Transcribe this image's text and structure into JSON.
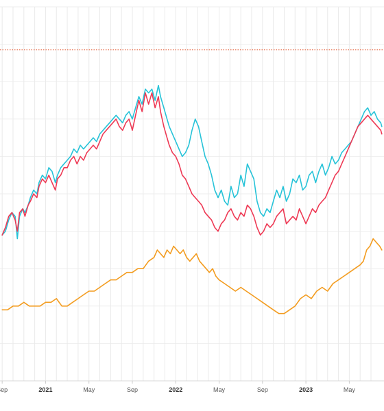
{
  "chart_data": {
    "type": "line",
    "title": "",
    "xlabel": "",
    "ylabel": "",
    "x_ticks": [
      {
        "label": "Sep",
        "t": 0.0,
        "bold": false
      },
      {
        "label": "2021",
        "t": 4.0,
        "bold": true
      },
      {
        "label": "May",
        "t": 8.0,
        "bold": false
      },
      {
        "label": "Sep",
        "t": 12.0,
        "bold": false
      },
      {
        "label": "2022",
        "t": 16.0,
        "bold": true
      },
      {
        "label": "May",
        "t": 20.0,
        "bold": false
      },
      {
        "label": "Sep",
        "t": 24.0,
        "bold": false
      },
      {
        "label": "2023",
        "t": 28.0,
        "bold": true
      },
      {
        "label": "May",
        "t": 32.0,
        "bold": false
      }
    ],
    "minor_ticks": [
      1,
      2,
      3,
      5,
      6,
      7,
      9,
      10,
      11,
      13,
      14,
      15,
      17,
      18,
      19,
      21,
      22,
      23,
      25,
      26,
      27,
      29,
      30,
      31,
      33,
      34
    ],
    "xlim": [
      -0.2,
      35.2
    ],
    "ylim": [
      0,
      100
    ],
    "reference_line": {
      "y": 88.5,
      "color": "#e4572e"
    },
    "grid": true,
    "series": [
      {
        "color": "#27c3d8",
        "x": [
          0,
          0.3,
          0.6,
          0.9,
          1.2,
          1.4,
          1.6,
          1.9,
          2.1,
          2.4,
          2.6,
          2.9,
          3.2,
          3.4,
          3.7,
          4.0,
          4.3,
          4.6,
          4.9,
          5.1,
          5.4,
          5.7,
          6.0,
          6.3,
          6.6,
          6.9,
          7.2,
          7.5,
          7.8,
          8.1,
          8.4,
          8.7,
          9.0,
          9.3,
          9.6,
          9.9,
          10.2,
          10.5,
          10.8,
          11.1,
          11.4,
          11.7,
          12.0,
          12.3,
          12.6,
          12.9,
          13.2,
          13.5,
          13.8,
          14.1,
          14.4,
          14.6,
          14.9,
          15.2,
          15.4,
          15.7,
          16.0,
          16.3,
          16.6,
          16.9,
          17.2,
          17.5,
          17.8,
          18.1,
          18.4,
          18.7,
          19.0,
          19.3,
          19.6,
          19.9,
          20.2,
          20.5,
          20.8,
          21.1,
          21.4,
          21.7,
          22.0,
          22.3,
          22.6,
          22.9,
          23.2,
          23.5,
          23.8,
          24.1,
          24.4,
          24.7,
          25.0,
          25.3,
          25.6,
          25.9,
          26.2,
          26.5,
          26.8,
          27.1,
          27.4,
          27.7,
          28.0,
          28.3,
          28.6,
          28.9,
          29.2,
          29.5,
          29.8,
          30.1,
          30.4,
          30.7,
          31.0,
          31.3,
          31.6,
          31.9,
          32.2,
          32.5,
          32.8,
          33.1,
          33.4,
          33.7,
          34.0,
          34.3,
          34.6,
          34.9,
          35.0
        ],
        "values": [
          39,
          40,
          43,
          45,
          44,
          38,
          44,
          46,
          45,
          47,
          49,
          51,
          50,
          53,
          55,
          54,
          57,
          56,
          53,
          55,
          57,
          58,
          59,
          60,
          62,
          61,
          63,
          62,
          63,
          64,
          65,
          64,
          66,
          67,
          68,
          69,
          70,
          71,
          70,
          69,
          71,
          72,
          70,
          73,
          76,
          74,
          78,
          77,
          78,
          75,
          79,
          76,
          73,
          70,
          68,
          66,
          64,
          62,
          60,
          61,
          63,
          67,
          70,
          68,
          64,
          60,
          58,
          55,
          51,
          49,
          51,
          48,
          47,
          52,
          49,
          50,
          55,
          52,
          58,
          56,
          54,
          48,
          45,
          44,
          46,
          45,
          48,
          51,
          49,
          52,
          48,
          50,
          54,
          53,
          55,
          51,
          52,
          55,
          56,
          53,
          56,
          58,
          55,
          57,
          60,
          58,
          59,
          61,
          62,
          63,
          64,
          66,
          68,
          70,
          72,
          73,
          71,
          72,
          70,
          69,
          68
        ]
      },
      {
        "color": "#ee3a55",
        "x": [
          0,
          0.3,
          0.6,
          0.9,
          1.2,
          1.4,
          1.6,
          1.9,
          2.1,
          2.4,
          2.6,
          2.9,
          3.2,
          3.4,
          3.7,
          4.0,
          4.3,
          4.6,
          4.9,
          5.1,
          5.4,
          5.7,
          6.0,
          6.3,
          6.6,
          6.9,
          7.2,
          7.5,
          7.8,
          8.1,
          8.4,
          8.7,
          9.0,
          9.3,
          9.6,
          9.9,
          10.2,
          10.5,
          10.8,
          11.1,
          11.4,
          11.7,
          12.0,
          12.3,
          12.6,
          12.9,
          13.2,
          13.5,
          13.8,
          14.1,
          14.4,
          14.6,
          14.9,
          15.2,
          15.4,
          15.7,
          16.0,
          16.3,
          16.6,
          16.9,
          17.2,
          17.5,
          17.8,
          18.1,
          18.4,
          18.7,
          19.0,
          19.3,
          19.6,
          19.9,
          20.2,
          20.5,
          20.8,
          21.1,
          21.4,
          21.7,
          22.0,
          22.3,
          22.6,
          22.9,
          23.2,
          23.5,
          23.8,
          24.1,
          24.4,
          24.7,
          25.0,
          25.3,
          25.6,
          25.9,
          26.2,
          26.5,
          26.8,
          27.1,
          27.4,
          27.7,
          28.0,
          28.3,
          28.6,
          28.9,
          29.2,
          29.5,
          29.8,
          30.1,
          30.4,
          30.7,
          31.0,
          31.3,
          31.6,
          31.9,
          32.2,
          32.5,
          32.8,
          33.1,
          33.4,
          33.7,
          34.0,
          34.3,
          34.6,
          34.9,
          35.0
        ],
        "values": [
          39,
          41,
          44,
          45,
          43,
          40,
          45,
          46,
          44,
          47,
          48,
          50,
          49,
          52,
          54,
          53,
          55,
          53,
          51,
          54,
          55,
          57,
          57,
          59,
          60,
          58,
          60,
          59,
          61,
          62,
          63,
          62,
          64,
          66,
          67,
          68,
          69,
          70,
          68,
          67,
          69,
          70,
          67,
          71,
          75,
          72,
          77,
          74,
          77,
          73,
          76,
          72,
          68,
          65,
          63,
          61,
          60,
          58,
          55,
          54,
          52,
          50,
          49,
          48,
          47,
          45,
          44,
          43,
          41,
          40,
          42,
          43,
          45,
          46,
          44,
          43,
          45,
          44,
          47,
          46,
          44,
          41,
          39,
          40,
          42,
          41,
          42,
          44,
          45,
          46,
          42,
          43,
          44,
          43,
          46,
          44,
          42,
          44,
          46,
          45,
          47,
          48,
          49,
          51,
          53,
          55,
          56,
          58,
          60,
          62,
          64,
          66,
          68,
          69,
          70,
          71,
          70,
          69,
          68,
          67,
          66
        ]
      },
      {
        "color": "#f39c1f",
        "x": [
          0,
          0.5,
          1.0,
          1.5,
          2.0,
          2.5,
          3.0,
          3.5,
          4.0,
          4.5,
          5.0,
          5.5,
          6.0,
          6.5,
          7.0,
          7.5,
          8.0,
          8.5,
          9.0,
          9.5,
          10.0,
          10.5,
          11.0,
          11.5,
          12.0,
          12.5,
          13.0,
          13.5,
          14.0,
          14.3,
          14.6,
          14.9,
          15.2,
          15.5,
          15.8,
          16.1,
          16.4,
          16.7,
          17.0,
          17.3,
          17.6,
          17.9,
          18.2,
          18.5,
          18.8,
          19.1,
          19.4,
          19.7,
          20.0,
          20.5,
          21.0,
          21.5,
          22.0,
          22.5,
          23.0,
          23.5,
          24.0,
          24.5,
          25.0,
          25.5,
          26.0,
          26.5,
          27.0,
          27.5,
          28.0,
          28.5,
          29.0,
          29.5,
          30.0,
          30.5,
          31.0,
          31.5,
          32.0,
          32.5,
          33.0,
          33.3,
          33.6,
          33.9,
          34.2,
          34.5,
          34.8,
          35.0
        ],
        "values": [
          19,
          19,
          20,
          20,
          21,
          20,
          20,
          20,
          21,
          21,
          22,
          20,
          20,
          21,
          22,
          23,
          24,
          24,
          25,
          26,
          27,
          27,
          28,
          29,
          29,
          30,
          30,
          32,
          33,
          35,
          34,
          33,
          35,
          34,
          36,
          35,
          34,
          35,
          33,
          32,
          33,
          34,
          32,
          31,
          30,
          29,
          30,
          28,
          27,
          26,
          25,
          24,
          25,
          24,
          23,
          22,
          21,
          20,
          19,
          18,
          18,
          19,
          20,
          22,
          23,
          22,
          24,
          25,
          24,
          26,
          27,
          28,
          29,
          30,
          31,
          32,
          35,
          36,
          38,
          37,
          36,
          35
        ]
      }
    ]
  }
}
